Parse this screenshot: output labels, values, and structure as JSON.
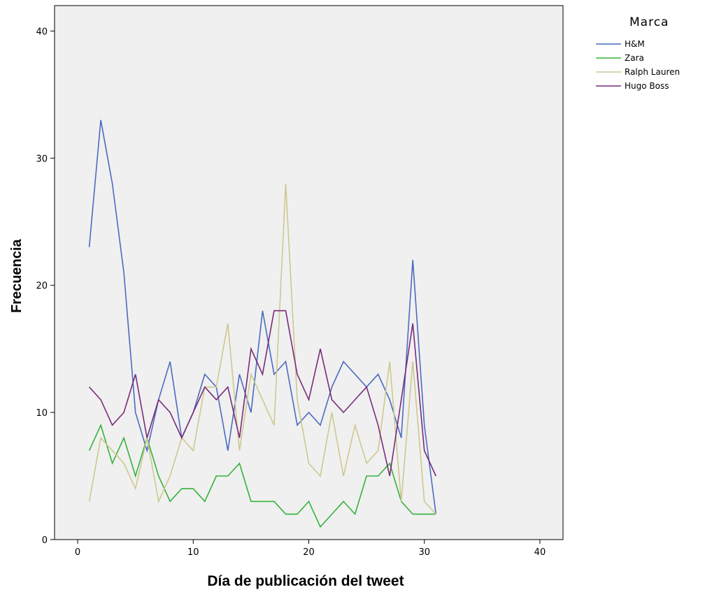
{
  "chart_data": {
    "type": "line",
    "title": "",
    "xlabel": "Día de publicación del tweet",
    "ylabel": "Frecuencia",
    "xlim": [
      -2,
      42
    ],
    "ylim": [
      0,
      42
    ],
    "xticks": [
      0,
      10,
      20,
      30,
      40
    ],
    "yticks": [
      0,
      10,
      20,
      30,
      40
    ],
    "grid": false,
    "legend_title": "Marca",
    "legend_position": "right",
    "x": [
      1,
      2,
      3,
      4,
      5,
      6,
      7,
      8,
      9,
      10,
      11,
      12,
      13,
      14,
      15,
      16,
      17,
      18,
      19,
      20,
      21,
      22,
      23,
      24,
      25,
      26,
      27,
      28,
      29,
      30,
      31
    ],
    "series": [
      {
        "name": "H&M",
        "color": "#4a6bbf",
        "values": [
          23,
          33,
          28,
          21,
          10,
          7,
          11,
          14,
          8,
          10,
          13,
          12,
          7,
          13,
          10,
          18,
          13,
          14,
          9,
          10,
          9,
          12,
          14,
          13,
          12,
          13,
          11,
          8,
          22,
          9,
          2
        ]
      },
      {
        "name": "Zara",
        "color": "#33b23a",
        "values": [
          7,
          9,
          6,
          8,
          5,
          8,
          5,
          3,
          4,
          4,
          3,
          5,
          5,
          6,
          3,
          3,
          3,
          2,
          2,
          3,
          1,
          2,
          3,
          2,
          5,
          5,
          6,
          3,
          2,
          2,
          2
        ]
      },
      {
        "name": "Ralph Lauren",
        "color": "#ccc98f",
        "values": [
          3,
          8,
          7,
          6,
          4,
          8,
          3,
          5,
          8,
          7,
          12,
          12,
          17,
          7,
          13,
          11,
          9,
          28,
          11,
          6,
          5,
          10,
          5,
          9,
          6,
          7,
          14,
          3,
          14,
          3,
          2
        ]
      },
      {
        "name": "Hugo Boss",
        "color": "#7a2a7a",
        "values": [
          12,
          11,
          9,
          10,
          13,
          8,
          11,
          10,
          8,
          10,
          12,
          11,
          12,
          8,
          15,
          13,
          18,
          18,
          13,
          11,
          15,
          11,
          10,
          11,
          12,
          9,
          5,
          11,
          17,
          7,
          5
        ]
      }
    ]
  }
}
